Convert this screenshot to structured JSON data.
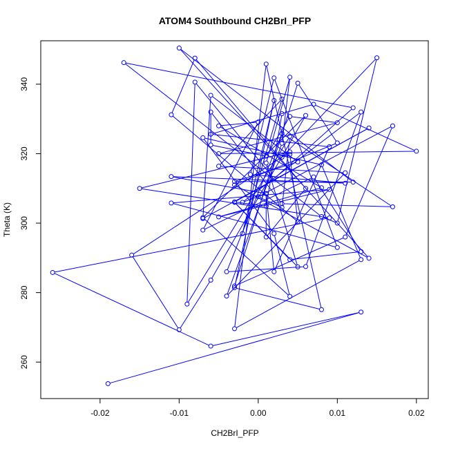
{
  "chart_data": {
    "type": "line",
    "title": "ATOM4 Southbound CH2BrI_PFP",
    "xlabel": "CH2BrI_PFP",
    "ylabel": "Theta (K)",
    "xlim": [
      -0.0275,
      0.0215
    ],
    "ylim": [
      249.5,
      352.5
    ],
    "xticks": [
      -0.02,
      -0.01,
      0.0,
      0.01,
      0.02
    ],
    "xtick_labels": [
      "-0.02",
      "-0.01",
      "0.00",
      "0.01",
      "0.02"
    ],
    "yticks": [
      260,
      280,
      300,
      320,
      340
    ],
    "yticks_labels": [
      "260",
      "280",
      "300",
      "320",
      "340"
    ],
    "grid": false,
    "legend": "none",
    "series_color": "#0000ff",
    "marker": "open-circle",
    "series": [
      {
        "x": [
          -0.019,
          0.013,
          -0.006,
          -0.026,
          0.009,
          -0.015,
          0.004,
          -0.016,
          -0.01,
          -0.006,
          0.006,
          -0.007,
          0.004,
          0.002,
          -0.007,
          0.008,
          0.013,
          -0.003,
          0.001,
          0.008,
          -0.003,
          0.002,
          -0.002,
          0.003,
          -0.005,
          0.011,
          -0.004,
          0.003,
          0.004,
          0.001,
          0.005,
          -0.003,
          0.004,
          0.013,
          0.007,
          -0.007,
          0.0,
          -0.005,
          0.008,
          -0.005,
          0.009,
          -0.011,
          0.01,
          0.002,
          -0.001,
          0.011,
          -0.011,
          0.001,
          0.002,
          0.009,
          -0.006,
          0.007,
          0.02,
          -0.005,
          0.01,
          0.004,
          0.001,
          -0.006,
          -0.006,
          0.003,
          0.017,
          0.003,
          -0.004,
          0.006,
          0.013,
          -0.002,
          0.001,
          0.001,
          0.006,
          -0.008,
          -0.011,
          0.005,
          0.004,
          0.003,
          0.015,
          0.01,
          0.008,
          -0.017,
          0.012,
          0.002,
          -0.008,
          -0.009,
          0.004,
          0.003,
          0.0,
          0.017,
          0.011,
          -0.003,
          0.005,
          0.01,
          -0.003,
          0.014,
          -0.01,
          0.012,
          -0.003,
          0.005,
          -0.006,
          -0.007,
          0.014,
          -0.003,
          0.001,
          0.003
        ],
        "y": [
          253.8,
          274.4,
          264.6,
          285.8,
          301.5,
          310.0,
          320.5,
          290.8,
          269.3,
          283.6,
          331.0,
          301.6,
          278.9,
          297.0,
          324.6,
          316.8,
          289.5,
          269.6,
          345.8,
          275.1,
          281.4,
          335.3,
          297.0,
          335.7,
          316.4,
          314.5,
          279.0,
          323.0,
          342.0,
          317.3,
          287.4,
          306.0,
          289.5,
          291.8,
          313.3,
          298.0,
          329.1,
          328.0,
          310.2,
          301.8,
          309.7,
          305.8,
          293.0,
          341.8,
          314.0,
          311.5,
          313.4,
          308.5,
          286.0,
          322.0,
          325.6,
          334.2,
          320.7,
          320.0,
          328.9,
          330.7,
          319.3,
          322.5,
          332.0,
          305.6,
          304.7,
          325.8,
          286.0,
          287.5,
          332.0,
          306.0,
          308.5,
          296.0,
          310.0,
          347.5,
          331.2,
          300.4,
          319.8,
          319.0,
          347.6,
          300.0,
          301.9,
          346.2,
          333.2,
          312.8,
          340.6,
          276.7,
          325.0,
          304.5,
          307.6,
          328.0,
          296.0,
          281.9,
          340.3,
          323.1,
          311.0,
          289.9,
          350.4,
          311.8,
          312.0,
          317.6,
          336.8,
          301.3,
          327.4,
          306.1,
          304.9,
          331.5
        ]
      }
    ]
  }
}
